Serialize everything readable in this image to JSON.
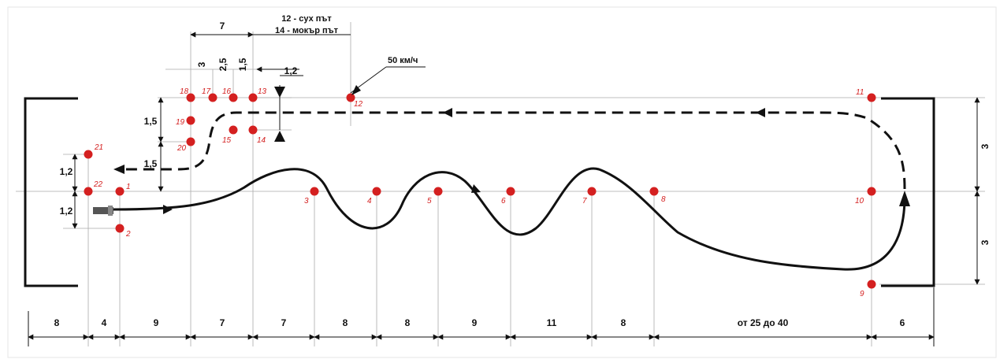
{
  "notes": {
    "dry_road": "12 - сух път",
    "wet_road": "14 - мокър път",
    "speed": "50 км/ч"
  },
  "markers": [
    {
      "id": "1",
      "label": "1"
    },
    {
      "id": "2",
      "label": "2"
    },
    {
      "id": "3",
      "label": "3"
    },
    {
      "id": "4",
      "label": "4"
    },
    {
      "id": "5",
      "label": "5"
    },
    {
      "id": "6",
      "label": "6"
    },
    {
      "id": "7",
      "label": "7"
    },
    {
      "id": "8",
      "label": "8"
    },
    {
      "id": "9",
      "label": "9"
    },
    {
      "id": "10",
      "label": "10"
    },
    {
      "id": "11",
      "label": "11"
    },
    {
      "id": "12",
      "label": "12"
    },
    {
      "id": "13",
      "label": "13"
    },
    {
      "id": "14",
      "label": "14"
    },
    {
      "id": "15",
      "label": "15"
    },
    {
      "id": "16",
      "label": "16"
    },
    {
      "id": "17",
      "label": "17"
    },
    {
      "id": "18",
      "label": "18"
    },
    {
      "id": "19",
      "label": "19"
    },
    {
      "id": "20",
      "label": "20"
    },
    {
      "id": "21",
      "label": "21"
    },
    {
      "id": "22",
      "label": "22"
    }
  ],
  "bottom_dimensions": [
    "8",
    "4",
    "9",
    "7",
    "7",
    "8",
    "8",
    "9",
    "11",
    "8",
    "от 25 до 40",
    "6"
  ],
  "top_dimensions": {
    "gate_length": "7",
    "seg_a": "3",
    "seg_b": "2,5",
    "seg_c": "1,5",
    "offset": "1,2"
  },
  "left_dimensions": {
    "gate_width_upper": "1,5",
    "gate_width_lower": "1,5",
    "start_upper": "1,2",
    "start_lower": "1,2"
  },
  "right_dimensions": {
    "upper": "3",
    "lower": "3"
  },
  "colors": {
    "marker": "#d42020",
    "line": "#111111",
    "guide": "#999999"
  }
}
